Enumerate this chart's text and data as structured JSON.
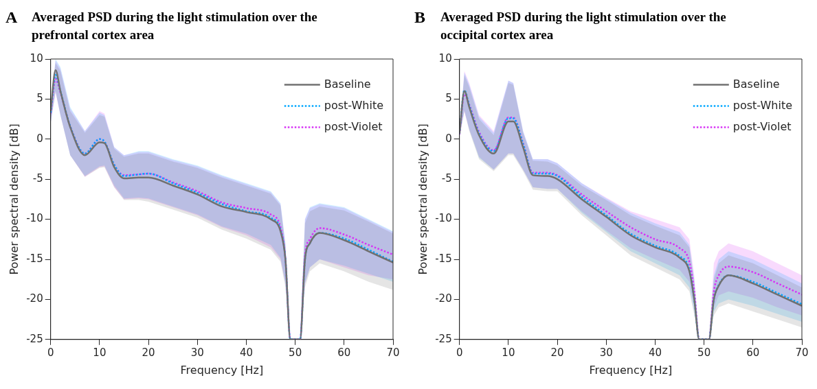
{
  "chart_data": [
    {
      "type": "line",
      "title": "Averaged PSD during the light stimulation over the prefrontal cortex area",
      "annotations": [
        "A"
      ],
      "xlabel": "Frequency [Hz]",
      "ylabel": "Power spectral density [dB]",
      "x": [
        0,
        1,
        2,
        4,
        7,
        10,
        11,
        13,
        15,
        18,
        20,
        25,
        30,
        35,
        40,
        45,
        47,
        48,
        49,
        51,
        52,
        53,
        55,
        60,
        65,
        70
      ],
      "series": [
        {
          "name": "Baseline",
          "color": "#707070",
          "line_style": "solid",
          "values": [
            3.5,
            8.6,
            6,
            1.5,
            -2,
            -0.4,
            -0.5,
            -3.5,
            -4.9,
            -4.8,
            -4.8,
            -5.8,
            -6.9,
            -8.4,
            -9.1,
            -10,
            -11.5,
            -15,
            -25,
            -25,
            -15,
            -13,
            -11.7,
            -12.6,
            -14,
            -15.4
          ],
          "lower": [
            2,
            6,
            3,
            -2,
            -4.7,
            -3.6,
            -3.5,
            -6,
            -7.6,
            -7.6,
            -7.8,
            -8.8,
            -9.8,
            -11.3,
            -12.4,
            -13.8,
            -15.3,
            -18.5,
            -25,
            -25,
            -18.5,
            -16.5,
            -15.5,
            -16.5,
            -17.8,
            -18.8
          ],
          "upper": [
            4,
            9.5,
            8.5,
            3.5,
            0.8,
            3,
            2.8,
            -1.2,
            -2.2,
            -1.8,
            -1.8,
            -2.8,
            -3.6,
            -4.8,
            -5.8,
            -6.8,
            -8.3,
            -13.5,
            -25,
            -25,
            -10.5,
            -9,
            -8.4,
            -8.9,
            -10.3,
            -11.8
          ]
        },
        {
          "name": "post-White",
          "color": "#00a6ff",
          "line_style": "dotted",
          "values": [
            3.3,
            8,
            6,
            1.6,
            -1.8,
            0,
            -0.3,
            -3.2,
            -4.6,
            -4.4,
            -4.3,
            -5.5,
            -6.7,
            -8.1,
            -9,
            -9.8,
            -11.3,
            -15,
            -25,
            -25,
            -15,
            -13,
            -11.7,
            -12.4,
            -13.8,
            -15.3
          ],
          "lower": [
            2,
            6,
            3,
            -2,
            -4.6,
            -3.4,
            -3.3,
            -5.8,
            -7.4,
            -7.3,
            -7.4,
            -8.4,
            -9.4,
            -10.9,
            -11.8,
            -13.2,
            -14.8,
            -18,
            -25,
            -25,
            -18,
            -16,
            -15,
            -15.8,
            -16.8,
            -17.8
          ],
          "upper": [
            4,
            10,
            9,
            4,
            1,
            3.3,
            3,
            -1,
            -2,
            -1.5,
            -1.5,
            -2.5,
            -3.3,
            -4.5,
            -5.5,
            -6.5,
            -8,
            -13,
            -25,
            -25,
            -10,
            -8.5,
            -8,
            -8.5,
            -10,
            -11.5
          ]
        },
        {
          "name": "post-Violet",
          "color": "#d633f5",
          "line_style": "dotted",
          "values": [
            3.2,
            7.5,
            5.8,
            1.6,
            -1.8,
            0,
            -0.3,
            -3.2,
            -4.5,
            -4.4,
            -4.3,
            -5.4,
            -6.5,
            -7.9,
            -8.6,
            -9.4,
            -11,
            -15,
            -25,
            -25,
            -14.5,
            -12.5,
            -11.1,
            -11.9,
            -13.2,
            -14.4
          ],
          "lower": [
            2,
            5.8,
            3,
            -2,
            -4.7,
            -3.5,
            -3.4,
            -6,
            -7.5,
            -7.4,
            -7.5,
            -8.5,
            -9.5,
            -11,
            -12,
            -13.5,
            -15,
            -18,
            -25,
            -25,
            -18,
            -16,
            -15,
            -16,
            -17,
            -17.5
          ],
          "upper": [
            4,
            9.8,
            8.8,
            3.8,
            1,
            3.5,
            3.2,
            -1,
            -2,
            -1.6,
            -1.6,
            -2.6,
            -3.4,
            -4.6,
            -5.6,
            -6.6,
            -8.1,
            -13,
            -25,
            -25,
            -10,
            -8.6,
            -8.1,
            -8.6,
            -10.1,
            -11.6
          ]
        }
      ],
      "xlim": [
        0,
        70
      ],
      "xticks": [
        0,
        10,
        20,
        30,
        40,
        50,
        60,
        70
      ],
      "ylim": [
        -25,
        10
      ],
      "yticks": [
        -25,
        -20,
        -15,
        -10,
        -5,
        0,
        5,
        10
      ],
      "legend": "top right"
    },
    {
      "type": "line",
      "title": "Averaged PSD during the light stimulation over the occipital cortex area",
      "annotations": [
        "B"
      ],
      "xlabel": "Frequency [Hz]",
      "ylabel": "Power spectral density [dB]",
      "x": [
        0,
        1,
        2,
        4,
        7,
        10,
        11,
        13,
        15,
        18,
        20,
        25,
        30,
        35,
        40,
        45,
        47,
        48,
        49,
        51,
        52,
        53,
        55,
        60,
        65,
        70
      ],
      "series": [
        {
          "name": "Baseline",
          "color": "#707070",
          "line_style": "solid",
          "values": [
            0.7,
            6,
            4,
            0.5,
            -1.8,
            2.2,
            2.2,
            -1,
            -4.5,
            -4.6,
            -5,
            -7.5,
            -9.7,
            -12,
            -13.5,
            -14.8,
            -16.5,
            -20,
            -25,
            -25,
            -20,
            -18.3,
            -17,
            -18,
            -19.4,
            -20.8
          ],
          "lower": [
            0.3,
            3.5,
            1,
            -2.5,
            -4,
            -2,
            -2,
            -4,
            -6.3,
            -6.5,
            -6.5,
            -9.5,
            -12,
            -14.5,
            -16,
            -17.5,
            -19,
            -22,
            -25,
            -25,
            -22,
            -21,
            -20.5,
            -21.5,
            -22.5,
            -23.5
          ],
          "upper": [
            1,
            8,
            6.5,
            2.5,
            0.5,
            7,
            6.8,
            0.8,
            -2.7,
            -2.8,
            -3.3,
            -5.8,
            -7.6,
            -9.5,
            -10.8,
            -12,
            -13.5,
            -18,
            -25,
            -25,
            -17.5,
            -15.5,
            -14.5,
            -15.5,
            -17,
            -18.5
          ]
        },
        {
          "name": "post-White",
          "color": "#00a6ff",
          "line_style": "dotted",
          "values": [
            0.7,
            6.1,
            4.2,
            0.7,
            -1.5,
            2.6,
            2.6,
            -0.6,
            -4.3,
            -4.3,
            -4.6,
            -7.2,
            -9.5,
            -11.8,
            -13.3,
            -14.6,
            -16.3,
            -20,
            -25,
            -25,
            -20,
            -18.2,
            -17,
            -17.8,
            -19.2,
            -20.6
          ],
          "lower": [
            0.3,
            3.6,
            1.2,
            -2.3,
            -3.8,
            -1.8,
            -1.8,
            -3.8,
            -6,
            -6.2,
            -6.2,
            -9.2,
            -11.6,
            -14,
            -15.5,
            -17,
            -18.5,
            -21.5,
            -25,
            -25,
            -21.5,
            -20.5,
            -20,
            -20.8,
            -21.8,
            -22.8
          ],
          "upper": [
            1,
            8.3,
            6.8,
            2.8,
            0.8,
            7.3,
            7,
            1,
            -2.5,
            -2.5,
            -3,
            -5.5,
            -7.4,
            -9.2,
            -10.5,
            -11.6,
            -13.2,
            -17.5,
            -25,
            -25,
            -17,
            -15,
            -14,
            -15,
            -16.5,
            -18
          ]
        },
        {
          "name": "post-Violet",
          "color": "#d633f5",
          "line_style": "dotted",
          "values": [
            0.6,
            5.6,
            4.3,
            0.9,
            -1.4,
            2.7,
            2.7,
            -0.5,
            -4.2,
            -4.2,
            -4.5,
            -6.9,
            -9,
            -11,
            -12.5,
            -13.6,
            -15.3,
            -19,
            -25,
            -25,
            -19,
            -17,
            -15.9,
            -16.6,
            -18,
            -19.4
          ],
          "lower": [
            0.3,
            3.4,
            1.2,
            -2.2,
            -3.8,
            -1.8,
            -1.8,
            -3.8,
            -6,
            -6.2,
            -6.2,
            -9,
            -11.4,
            -13.6,
            -15,
            -16.3,
            -17.8,
            -21,
            -25,
            -25,
            -21,
            -19.5,
            -19,
            -19.8,
            -21,
            -22
          ],
          "upper": [
            1,
            8.5,
            7,
            3,
            1,
            7.3,
            7,
            1,
            -2.5,
            -2.5,
            -3,
            -5.5,
            -7.3,
            -9,
            -10,
            -11,
            -12.5,
            -17,
            -25,
            -25,
            -15.5,
            -14,
            -13,
            -14,
            -15.5,
            -17
          ]
        }
      ],
      "xlim": [
        0,
        70
      ],
      "xticks": [
        0,
        10,
        20,
        30,
        40,
        50,
        60,
        70
      ],
      "ylim": [
        -25,
        10
      ],
      "yticks": [
        -25,
        -20,
        -15,
        -10,
        -5,
        0,
        5,
        10
      ],
      "legend": "top right"
    }
  ]
}
